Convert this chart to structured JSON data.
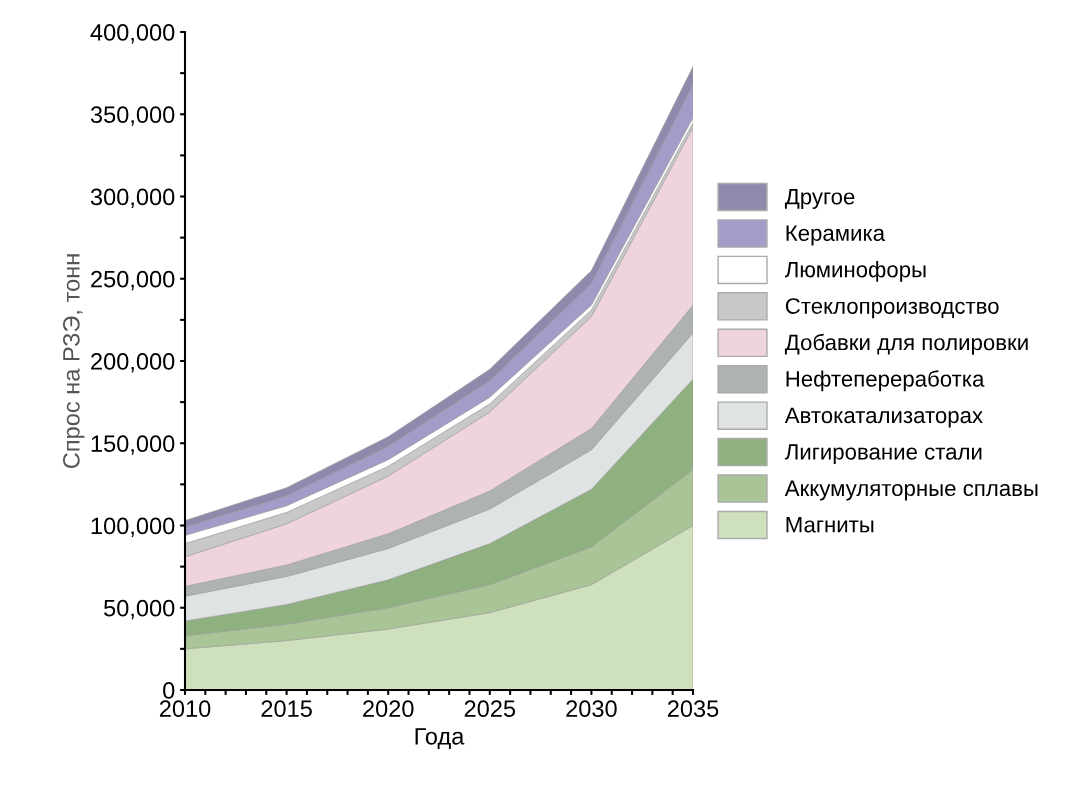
{
  "chart_data": {
    "type": "area",
    "stacked": true,
    "xlabel": "Года",
    "ylabel": "Спрос на РЗЭ, тонн",
    "x": [
      2010,
      2015,
      2020,
      2025,
      2030,
      2035
    ],
    "series": [
      {
        "name": "Магниты",
        "color": "#cfe0bc",
        "values": [
          25000,
          30000,
          37000,
          47000,
          64000,
          100000
        ]
      },
      {
        "name": "Аккумуляторные сплавы",
        "color": "#a9c496",
        "values": [
          8000,
          10000,
          13000,
          17000,
          23000,
          34000
        ]
      },
      {
        "name": "Лигирование стали",
        "color": "#8fb07f",
        "values": [
          9000,
          12000,
          17000,
          25000,
          35000,
          55000
        ]
      },
      {
        "name": "Автокатализаторах",
        "color": "#e0e3e3",
        "values": [
          15000,
          17000,
          19000,
          21000,
          24000,
          28000
        ]
      },
      {
        "name": "Нефтепереработка",
        "color": "#aeb3b0",
        "values": [
          6000,
          7000,
          9000,
          11000,
          13000,
          17000
        ]
      },
      {
        "name": "Добавки для полировки",
        "color": "#f0d4dc",
        "values": [
          18000,
          25000,
          35000,
          48000,
          68000,
          108000
        ]
      },
      {
        "name": "Стеклопроизводство",
        "color": "#c8c8c8",
        "values": [
          8000,
          7000,
          6000,
          5000,
          4000,
          3000
        ]
      },
      {
        "name": "Люминофоры",
        "color": "#ffffff",
        "values": [
          5000,
          4000,
          4000,
          4000,
          3000,
          3000
        ]
      },
      {
        "name": "Керамика",
        "color": "#a59bc8",
        "values": [
          5000,
          6000,
          8000,
          10000,
          13000,
          20000
        ]
      },
      {
        "name": "Другое",
        "color": "#8e8aab",
        "values": [
          4000,
          5000,
          6000,
          7000,
          8000,
          11000
        ]
      }
    ],
    "xlim": [
      2010,
      2035
    ],
    "xticks": [
      2010,
      {
        "value": 2011,
        "label": null
      },
      {
        "value": 2012,
        "label": null
      },
      {
        "value": 2013,
        "label": null
      },
      {
        "value": 2014,
        "label": null
      },
      2015,
      {
        "value": 2016,
        "label": null
      },
      {
        "value": 2017,
        "label": null
      },
      {
        "value": 2018,
        "label": null
      },
      {
        "value": 2019,
        "label": null
      },
      2020,
      {
        "value": 2021,
        "label": null
      },
      {
        "value": 2022,
        "label": null
      },
      {
        "value": 2023,
        "label": null
      },
      {
        "value": 2024,
        "label": null
      },
      2025,
      {
        "value": 2026,
        "label": null
      },
      {
        "value": 2027,
        "label": null
      },
      {
        "value": 2028,
        "label": null
      },
      {
        "value": 2029,
        "label": null
      },
      2030,
      {
        "value": 2031,
        "label": null
      },
      {
        "value": 2032,
        "label": null
      },
      {
        "value": 2033,
        "label": null
      },
      {
        "value": 2034,
        "label": null
      },
      2035
    ],
    "ylim": [
      0,
      400000
    ],
    "yticks": [
      0,
      {
        "value": 25000,
        "label": null
      },
      {
        "value": 50000,
        "label": "50,000"
      },
      {
        "value": 75000,
        "label": null
      },
      {
        "value": 100000,
        "label": "100,000"
      },
      {
        "value": 125000,
        "label": null
      },
      {
        "value": 150000,
        "label": "150,000"
      },
      {
        "value": 175000,
        "label": null
      },
      {
        "value": 200000,
        "label": "200,000"
      },
      {
        "value": 225000,
        "label": null
      },
      {
        "value": 250000,
        "label": "250,000"
      },
      {
        "value": 275000,
        "label": null
      },
      {
        "value": 300000,
        "label": "300,000"
      },
      {
        "value": 325000,
        "label": null
      },
      {
        "value": 350000,
        "label": "350,000"
      },
      {
        "value": 375000,
        "label": null
      },
      {
        "value": 400000,
        "label": "400,000"
      }
    ],
    "legend": "right",
    "grid": false
  }
}
